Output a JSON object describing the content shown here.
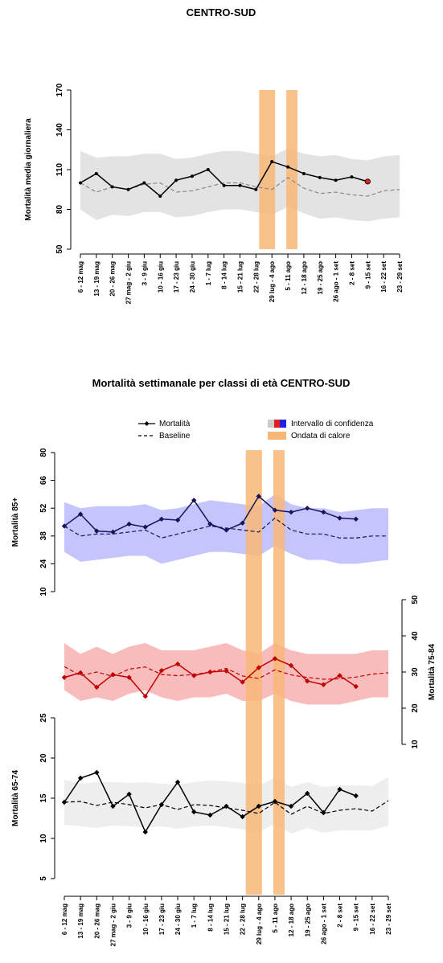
{
  "chart_data": [
    {
      "type": "line",
      "title": "CENTRO-SUD",
      "y_label": "Mortalità media giornaliera",
      "categories": [
        "6 - 12 mag",
        "13 - 19 mag",
        "20 - 26 mag",
        "27 mag - 2 giu",
        "3 - 9 giu",
        "10 - 16 giu",
        "17 - 23 giu",
        "24 - 30 giu",
        "1 - 7 lug",
        "8 - 14 lug",
        "15 - 21 lug",
        "22 - 28 lug",
        "29 lug - 4 ago",
        "5 - 11 ago",
        "12 - 18 ago",
        "19 - 25 ago",
        "26 ago - 1 set",
        "2 - 8 set",
        "9 - 15 set",
        "16 - 22 set",
        "23 - 29 set"
      ],
      "ylim": [
        50,
        170
      ],
      "yticks": [
        50,
        80,
        110,
        140,
        170
      ],
      "panels": [
        {
          "ylim": [
            50,
            170
          ],
          "color": "#000000",
          "band_color": "#e3e3e3",
          "last_point_color": "#e02020",
          "mortality": [
            100,
            107,
            97,
            95,
            100,
            90,
            102,
            105,
            110,
            98,
            98,
            95,
            116,
            112,
            107,
            104,
            102,
            104.5,
            101,
            null,
            null
          ],
          "baseline": [
            100,
            93,
            97,
            95,
            99,
            100,
            93,
            94,
            97,
            100,
            100,
            97,
            95,
            104,
            96,
            92,
            93,
            91,
            90,
            94,
            95
          ],
          "upper": [
            124,
            119,
            120,
            120,
            122,
            122,
            118,
            119,
            122,
            124,
            124,
            122,
            120,
            126,
            122,
            120,
            121,
            118,
            117,
            120,
            121
          ],
          "lower": [
            80,
            72,
            76,
            75,
            78,
            78,
            74,
            75,
            78,
            80,
            80,
            78,
            76,
            82,
            77,
            73,
            74,
            72,
            71,
            73,
            74
          ]
        }
      ],
      "heatwaves": [
        [
          11.2,
          12.2
        ],
        [
          12.9,
          13.6
        ]
      ],
      "heatwave_color": "#f9b777"
    },
    {
      "type": "line",
      "title": "Mortalità settimanale per classi di età CENTRO-SUD",
      "legend": {
        "mortality": "Mortalità",
        "baseline": "Baseline",
        "ci": "Intervallo di confidenza",
        "heatwave": "Ondata di calore"
      },
      "categories": [
        "6 - 12 mag",
        "13 - 19 mag",
        "20 - 26 mag",
        "27 mag - 2 giu",
        "3 - 9 giu",
        "10 - 16 giu",
        "17 - 23 giu",
        "24 - 30 giu",
        "1 - 7 lug",
        "8 - 14 lug",
        "15 - 21 lug",
        "22 - 28 lug",
        "29 lug - 4 ago",
        "5 - 11 ago",
        "12 - 18 ago",
        "19 - 25 ago",
        "26 ago - 1 set",
        "2 - 8 set",
        "9 - 15 set",
        "16 - 22 set",
        "23 - 29 set"
      ],
      "panels": [
        {
          "y_label": "Mortalità 85+",
          "side": "left",
          "ylim": [
            10,
            80
          ],
          "yticks": [
            10,
            24,
            38,
            52,
            66,
            80
          ],
          "color": "#15155e",
          "band_color": "#c5c5fb",
          "mortality": [
            43,
            49,
            40.5,
            40,
            44,
            42.5,
            46.5,
            46,
            56,
            44,
            41,
            44.5,
            58,
            51,
            50,
            52,
            50,
            47,
            46.5,
            null,
            null
          ],
          "baseline": [
            43,
            38,
            39,
            39,
            40,
            41,
            37,
            39,
            41,
            43,
            42,
            41,
            40,
            47,
            41,
            39,
            39,
            37,
            37,
            38,
            38
          ],
          "upper": [
            55,
            52,
            53,
            53,
            53,
            54,
            51,
            52,
            54,
            56,
            55,
            54,
            53,
            59,
            54,
            52,
            52,
            50,
            51,
            52,
            52
          ],
          "lower": [
            30,
            25,
            26,
            27,
            28,
            28,
            24,
            26,
            28,
            30,
            30,
            29,
            28,
            33,
            29,
            26,
            26,
            24,
            24,
            25,
            26
          ]
        },
        {
          "y_label": "Mortalità 75-84",
          "side": "right",
          "ylim": [
            10,
            50
          ],
          "yticks": [
            10,
            20,
            30,
            40,
            50
          ],
          "color": "#c00000",
          "band_color": "#f8bcbc",
          "mortality": [
            28.5,
            29.8,
            25.8,
            29.3,
            28.5,
            23.3,
            30.4,
            32.2,
            29,
            30,
            30.3,
            27.2,
            31.2,
            33.7,
            31.8,
            27.5,
            26.5,
            29,
            26,
            null,
            null
          ],
          "baseline": [
            31.5,
            29,
            30,
            28.8,
            30.8,
            31.4,
            29.3,
            29,
            29.3,
            30,
            31,
            28.9,
            28.2,
            30.6,
            29.2,
            28.5,
            28,
            28.1,
            28.6,
            29.4,
            29.8
          ],
          "upper": [
            38,
            35,
            37,
            35,
            37,
            38,
            36,
            36,
            36,
            37,
            38,
            36,
            35,
            38,
            36,
            35,
            35,
            35,
            35,
            36,
            36
          ],
          "lower": [
            25,
            22,
            23,
            22,
            24,
            25,
            23,
            22,
            23,
            23,
            24,
            22,
            22,
            24,
            22,
            21,
            21,
            21,
            22,
            23,
            23
          ]
        },
        {
          "y_label": "Mortalità 65-74",
          "side": "left",
          "ylim": [
            5,
            25
          ],
          "yticks": [
            5,
            10,
            15,
            20,
            25
          ],
          "color": "#000000",
          "band_color": "#eeeeee",
          "mortality": [
            14.5,
            17.5,
            18.2,
            14,
            15.5,
            10.8,
            14.2,
            17,
            13.3,
            12.9,
            14,
            12.7,
            14,
            14.6,
            14,
            15.6,
            13.2,
            16.1,
            15.3,
            null,
            null
          ],
          "baseline": [
            14.5,
            14.6,
            14.1,
            14.5,
            14.2,
            13.8,
            14.2,
            13.6,
            14.2,
            14.1,
            13.8,
            13.5,
            13.1,
            14.5,
            13,
            14,
            13.1,
            13.5,
            13.7,
            13.4,
            14.7
          ],
          "upper": [
            17.3,
            16.8,
            17,
            17,
            16.9,
            17,
            16.8,
            16.7,
            17,
            17.2,
            17.1,
            16.9,
            16.5,
            17.6,
            16.4,
            17,
            16.4,
            16.6,
            16.6,
            16.5,
            17.6
          ],
          "lower": [
            11.7,
            11.5,
            11.3,
            11.6,
            11.5,
            11.4,
            11.5,
            11.2,
            11.5,
            11.6,
            11.4,
            11.1,
            10.8,
            11.8,
            10.6,
            11.3,
            10.7,
            11.0,
            11.0,
            11.0,
            11.6
          ]
        }
      ],
      "heatwaves": [
        [
          11.2,
          12.2
        ],
        [
          12.9,
          13.6
        ]
      ],
      "heatwave_color": "#f9b777"
    }
  ]
}
